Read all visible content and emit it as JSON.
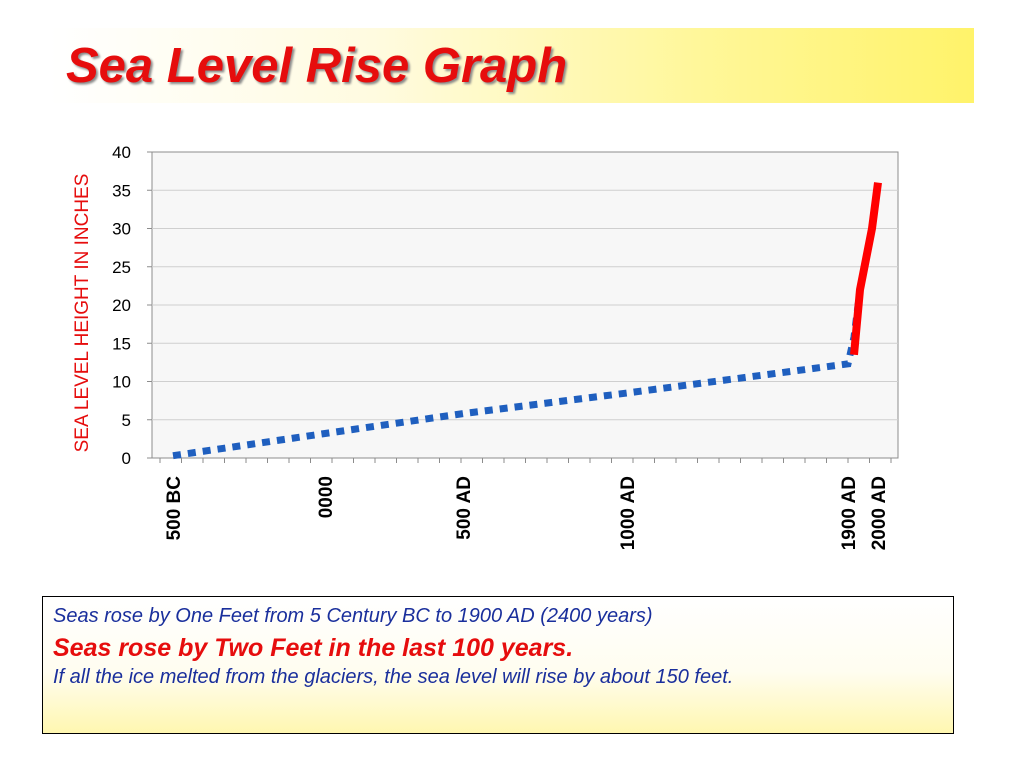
{
  "slide": {
    "title": "Sea Level Rise Graph"
  },
  "chart_data": {
    "type": "line",
    "ylabel": "SEA LEVEL HEIGHT IN INCHES",
    "xlabel": "",
    "ylim": [
      0,
      40
    ],
    "yticks": [
      0,
      5,
      10,
      15,
      20,
      25,
      30,
      35,
      40
    ],
    "x_tick_labels": [
      {
        "label": "500 BC",
        "year": -500
      },
      {
        "label": "0000",
        "year": 0
      },
      {
        "label": "500 AD",
        "year": 500
      },
      {
        "label": "1000 AD",
        "year": 1000
      },
      {
        "label": "1900 AD",
        "year": 1900
      },
      {
        "label": "2000 AD",
        "year": 2000
      }
    ],
    "grid": true,
    "legend": "none",
    "series": [
      {
        "style": "dotted",
        "color": "#1f5fbf",
        "points": [
          {
            "year": -500,
            "value": 0.3
          },
          {
            "year": 0,
            "value": 3.2
          },
          {
            "year": 500,
            "value": 5.8
          },
          {
            "year": 1000,
            "value": 8.5
          },
          {
            "year": 1900,
            "value": 12.3
          },
          {
            "year": 1920,
            "value": 15.8
          },
          {
            "year": 1940,
            "value": 22
          },
          {
            "year": 1960,
            "value": 26
          },
          {
            "year": 1980,
            "value": 30
          },
          {
            "year": 2000,
            "value": 36
          }
        ]
      },
      {
        "style": "solid",
        "color": "#ff0000",
        "points": [
          {
            "year": 1920,
            "value": 13.5
          },
          {
            "year": 1940,
            "value": 22
          },
          {
            "year": 1960,
            "value": 26
          },
          {
            "year": 1980,
            "value": 30
          },
          {
            "year": 2000,
            "value": 36
          }
        ]
      }
    ]
  },
  "info": {
    "line1": "Seas rose by One Feet from 5 Century BC to 1900 AD (2400 years)",
    "line2": "Seas rose by Two Feet in the last 100 years.",
    "line3": "If all the ice melted from the glaciers, the sea level will rise by about 150 feet."
  }
}
